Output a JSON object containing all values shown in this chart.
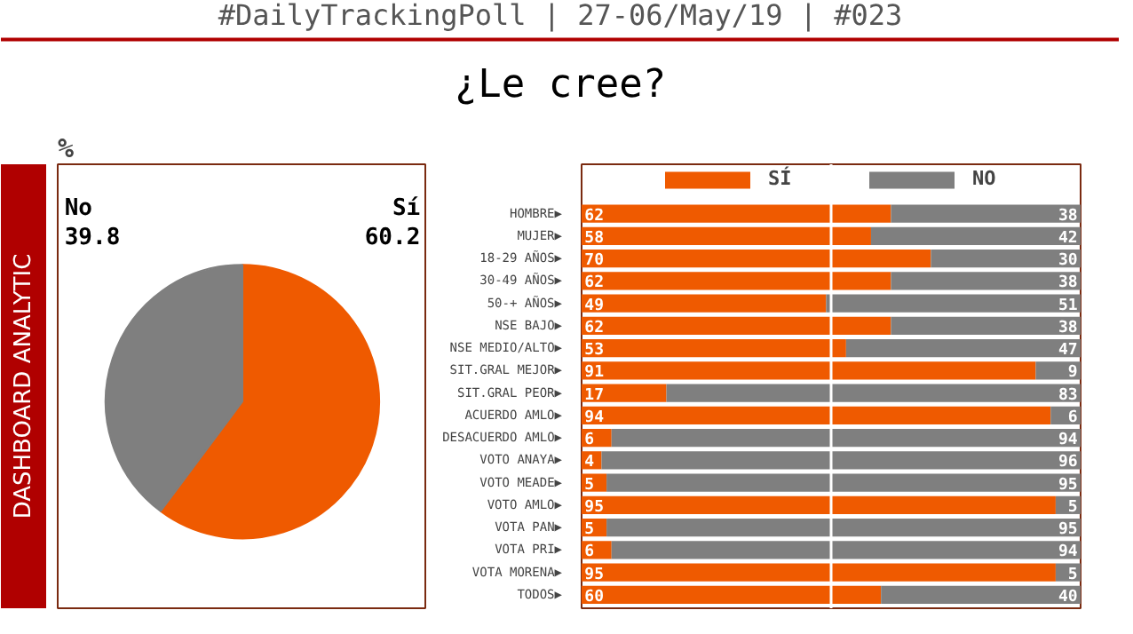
{
  "chart_data": [
    {
      "type": "pie",
      "title": "%",
      "annotations": [
        "#DailyTrackingPoll | 27-06/May/19 | #023",
        "¿Le cree?",
        "DASHBOARD ANALYTIC"
      ],
      "categories": [
        "Sí",
        "No"
      ],
      "values": [
        60.2,
        39.8
      ],
      "colors": [
        "#ef5a00",
        "#7f7f7f"
      ],
      "data_labels": true
    },
    {
      "type": "bar",
      "orientation": "horizontal",
      "stacked": true,
      "data_labels": true,
      "legend": "top",
      "categories": [
        "HOMBRE▶",
        "MUJER▶",
        "18-29 AÑOS▶",
        "30-49 AÑOS▶",
        "50-+ AÑOS▶",
        "NSE BAJO▶",
        "NSE MEDIO/ALTO▶",
        "SIT.GRAL MEJOR▶",
        "SIT.GRAL PEOR▶",
        "ACUERDO AMLO▶",
        "DESACUERDO AMLO▶",
        "VOTO ANAYA▶",
        "VOTO MEADE▶",
        "VOTO AMLO▶",
        "VOTA PAN▶",
        "VOTA PRI▶",
        "VOTA MORENA▶",
        "TODOS▶"
      ],
      "series": [
        {
          "name": "SÍ",
          "color": "#ef5a00",
          "values": [
            62,
            58,
            70,
            62,
            49,
            62,
            53,
            91,
            17,
            94,
            6,
            4,
            5,
            95,
            5,
            6,
            95,
            60
          ]
        },
        {
          "name": "NO",
          "color": "#7f7f7f",
          "values": [
            38,
            42,
            30,
            38,
            51,
            38,
            47,
            9,
            83,
            6,
            94,
            96,
            95,
            5,
            95,
            94,
            5,
            40
          ]
        }
      ],
      "ref_lines": [
        {
          "axis": "x",
          "value": 50,
          "color": "#ffffff"
        }
      ]
    }
  ]
}
